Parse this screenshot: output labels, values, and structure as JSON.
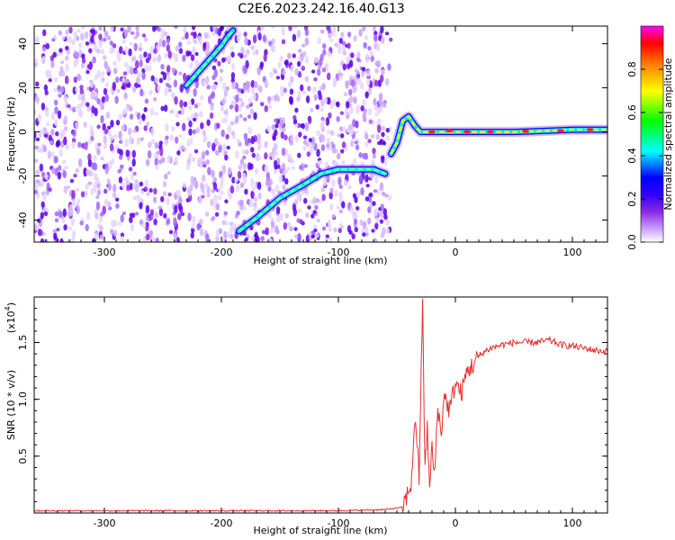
{
  "title": "C2E6.2023.242.16.40.G13",
  "chart_data": [
    {
      "type": "heatmap",
      "xlabel": "Height of straight line (km)",
      "ylabel": "Frequency (Hz)",
      "xlim": [
        -360,
        130
      ],
      "ylim": [
        -50,
        48
      ],
      "x_ticks": [
        -300,
        -200,
        -100,
        0,
        100
      ],
      "y_ticks": [
        -40,
        -20,
        0,
        20,
        40
      ],
      "colorbar": {
        "label": "Normalized spectral amplitude",
        "range": [
          0.0,
          1.0
        ],
        "ticks": [
          0.0,
          0.2,
          0.4,
          0.6,
          0.8
        ],
        "tick_labels": [
          "0.0",
          "0.2",
          "0.4",
          "0.6",
          "0.8"
        ],
        "colors": [
          "#ffffff",
          "#c9a3ff",
          "#8a2be2",
          "#3000ff",
          "#0000ff",
          "#00ffff",
          "#00ff00",
          "#ffff00",
          "#ff8000",
          "#ff0000",
          "#ff00ff"
        ]
      },
      "features": {
        "noise_region_x": [
          -360,
          -55
        ],
        "tone_track": {
          "x": [
            -55,
            -50,
            -45,
            -40,
            -35,
            -30,
            -20,
            0,
            20,
            50,
            80,
            100,
            130
          ],
          "y": [
            -10,
            -5,
            5,
            7,
            3,
            0,
            0,
            0,
            0,
            0,
            0.5,
            1,
            1
          ]
        },
        "whistler_lower": {
          "x": [
            -185,
            -170,
            -150,
            -130,
            -115,
            -100,
            -85,
            -70,
            -60
          ],
          "y": [
            -45,
            -39,
            -30,
            -24,
            -19,
            -17,
            -17,
            -17,
            -19
          ]
        },
        "whistler_upper": {
          "x": [
            -230,
            -220,
            -210,
            -200,
            -195,
            -190
          ],
          "y": [
            21,
            27,
            33,
            39,
            43,
            46
          ]
        }
      }
    },
    {
      "type": "line",
      "xlabel": "Height of straight line (km)",
      "ylabel": "SNR (10 * v/v)",
      "y_multiplier_label": "(x10",
      "y_multiplier_exp": "4",
      "xlim": [
        -360,
        130
      ],
      "ylim": [
        0,
        1.9
      ],
      "x_ticks": [
        -300,
        -200,
        -100,
        0,
        100
      ],
      "y_ticks": [
        0.5,
        1.0,
        1.5
      ],
      "y_tick_labels": [
        "0.5",
        "1.0",
        "1.5"
      ],
      "series": [
        {
          "color": "#e83030",
          "x": [
            -360,
            -300,
            -200,
            -100,
            -60,
            -45,
            -38,
            -34,
            -31,
            -28,
            -26,
            -24,
            -22,
            -20,
            -18,
            -15,
            -12,
            -10,
            -5,
            0,
            5,
            10,
            15,
            20,
            25,
            30,
            40,
            50,
            60,
            70,
            80,
            90,
            100,
            110,
            120,
            130
          ],
          "y": [
            0.02,
            0.02,
            0.02,
            0.02,
            0.03,
            0.05,
            0.25,
            0.85,
            0.3,
            1.9,
            0.35,
            0.75,
            0.2,
            0.6,
            0.3,
            0.95,
            0.65,
            1.05,
            0.9,
            1.15,
            1.05,
            1.25,
            1.3,
            1.38,
            1.42,
            1.45,
            1.48,
            1.5,
            1.5,
            1.5,
            1.52,
            1.48,
            1.47,
            1.45,
            1.43,
            1.42
          ]
        }
      ]
    }
  ]
}
